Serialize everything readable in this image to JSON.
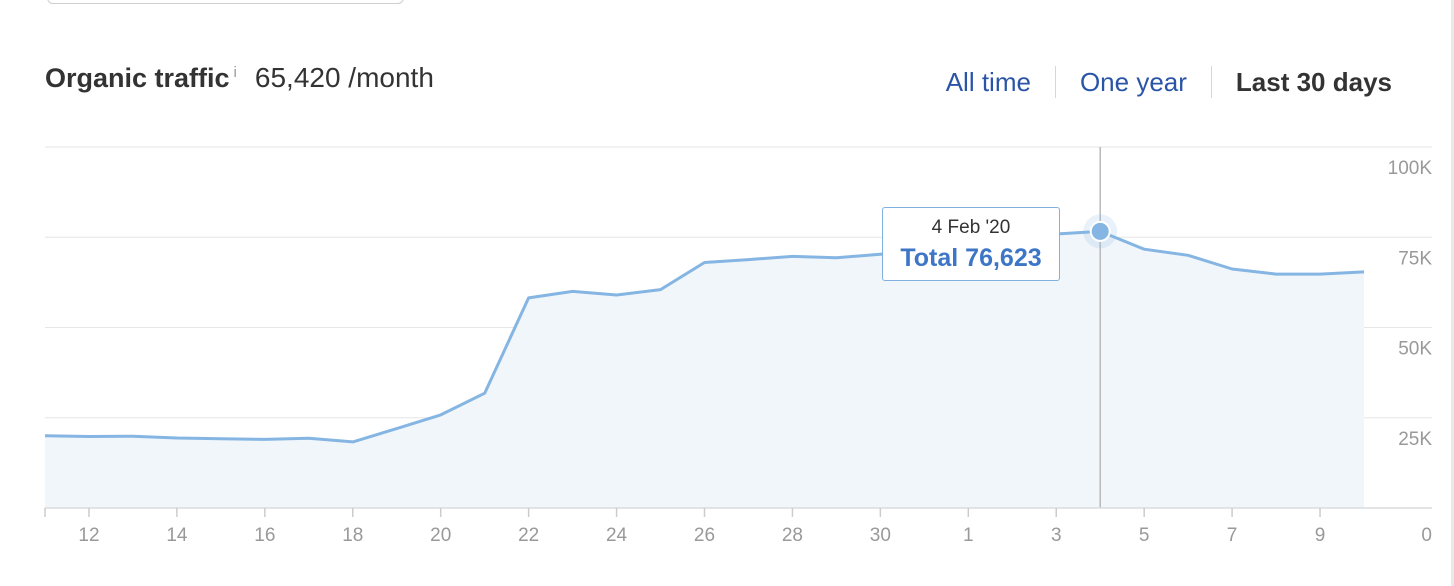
{
  "header": {
    "title": "Organic traffic",
    "info_icon": "i",
    "traffic": "65,420 /month"
  },
  "ranges": [
    {
      "label": "All time",
      "active": false
    },
    {
      "label": "One year",
      "active": false
    },
    {
      "label": "Last 30 days",
      "active": true
    }
  ],
  "tooltip": {
    "date": "4 Feb '20",
    "total": "Total 76,623"
  },
  "colors": {
    "line": "#85b5e2",
    "area": "#f1f6fb",
    "link": "#2a55a7",
    "tooltip_total": "#3d76c6"
  },
  "chart_data": {
    "type": "area",
    "x": [
      "11 Jan",
      "12 Jan",
      "13 Jan",
      "14 Jan",
      "15 Jan",
      "16 Jan",
      "17 Jan",
      "18 Jan",
      "19 Jan",
      "20 Jan",
      "21 Jan",
      "22 Jan",
      "23 Jan",
      "24 Jan",
      "25 Jan",
      "26 Jan",
      "27 Jan",
      "28 Jan",
      "29 Jan",
      "30 Jan",
      "31 Jan",
      "1 Feb",
      "2 Feb",
      "3 Feb",
      "4 Feb",
      "5 Feb",
      "6 Feb",
      "7 Feb",
      "8 Feb",
      "9 Feb",
      "10 Feb"
    ],
    "values": [
      20000,
      19800,
      19900,
      19400,
      19200,
      19000,
      19300,
      18300,
      22000,
      25800,
      31800,
      58200,
      60000,
      59000,
      60500,
      68000,
      68800,
      69700,
      69300,
      70300,
      71300,
      72700,
      74400,
      75900,
      76623,
      71700,
      70000,
      66200,
      64800,
      64800,
      65400
    ],
    "x_tick_labels": [
      "12",
      "14",
      "16",
      "18",
      "20",
      "22",
      "24",
      "26",
      "28",
      "30",
      "1",
      "3",
      "5",
      "7",
      "9"
    ],
    "x_tick_index": [
      1,
      3,
      5,
      7,
      9,
      11,
      13,
      15,
      17,
      19,
      21,
      23,
      25,
      27,
      29
    ],
    "y_ticks": [
      25000,
      50000,
      75000,
      100000
    ],
    "y_tick_labels": [
      "25K",
      "50K",
      "75K",
      "100K"
    ],
    "y_zero_label": "0",
    "ylim": [
      0,
      100000
    ],
    "highlight_index": 24,
    "grid": true,
    "legend": "none"
  }
}
